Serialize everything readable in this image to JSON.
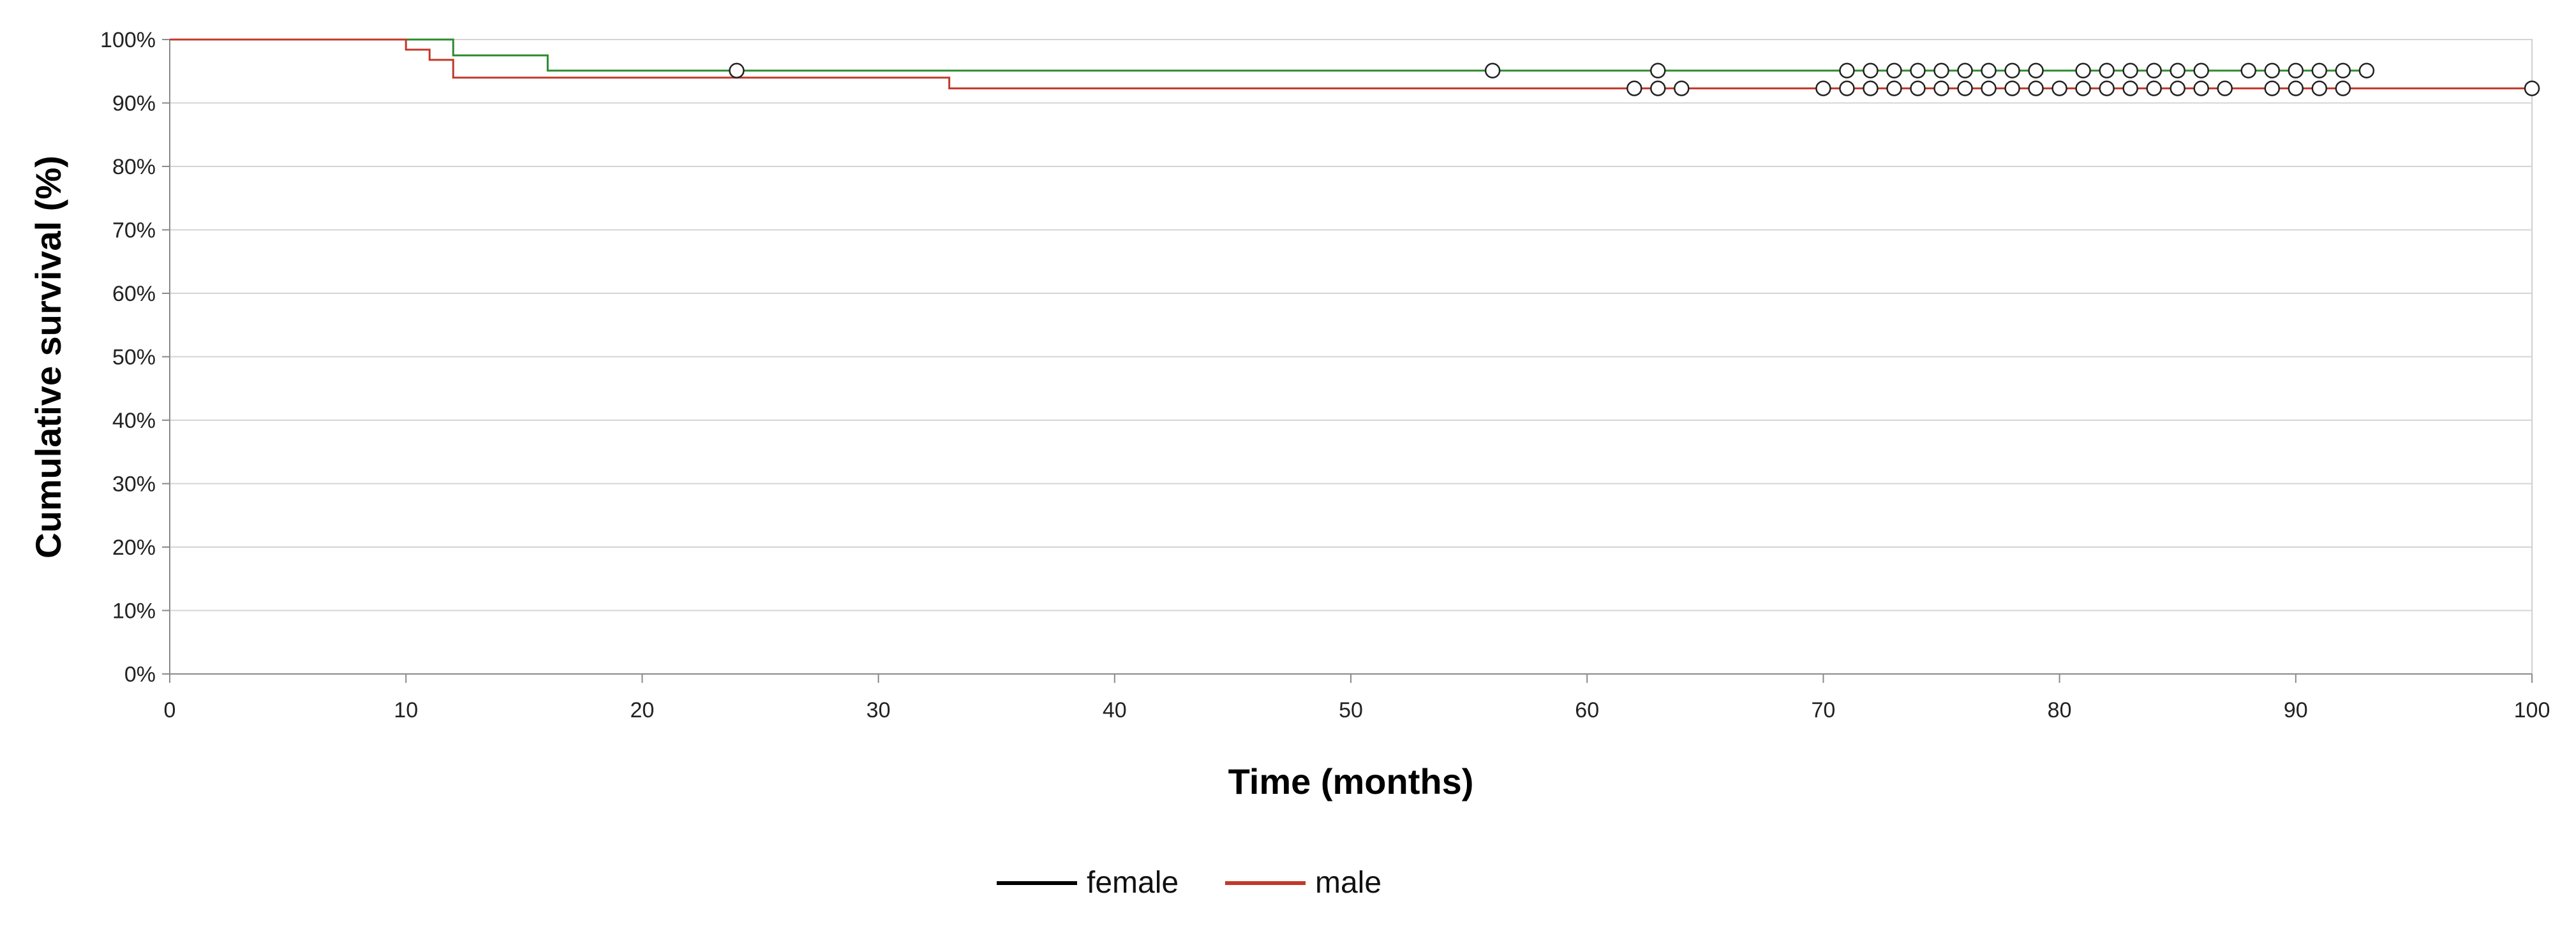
{
  "chart_data": {
    "type": "line",
    "step": true,
    "title": "",
    "xlabel": "Time (months)",
    "ylabel": "Cumulative survival (%)",
    "xlim": [
      0,
      100
    ],
    "ylim": [
      0,
      100
    ],
    "xticks": [
      0,
      10,
      20,
      30,
      40,
      50,
      60,
      70,
      80,
      90,
      100
    ],
    "xtick_labels": [
      "0",
      "10",
      "20",
      "30",
      "40",
      "50",
      "60",
      "70",
      "80",
      "90",
      "100"
    ],
    "yticks": [
      0,
      10,
      20,
      30,
      40,
      50,
      60,
      70,
      80,
      90,
      100
    ],
    "ytick_labels": [
      "0%",
      "10%",
      "20%",
      "30%",
      "40%",
      "50%",
      "60%",
      "70%",
      "80%",
      "90%",
      "100%"
    ],
    "grid": "horizontal",
    "legend_position": "bottom",
    "censor_marker": "open-circle",
    "series": [
      {
        "name": "female",
        "legend_color": "#000000",
        "color": "#2e8b2e",
        "steps": [
          [
            0,
            100
          ],
          [
            12,
            97.5
          ],
          [
            16,
            95.1
          ]
        ],
        "end_x": 93,
        "censored": [
          [
            24,
            95.1
          ],
          [
            56,
            95.1
          ],
          [
            63,
            95.1
          ],
          [
            71,
            95.1
          ],
          [
            72,
            95.1
          ],
          [
            73,
            95.1
          ],
          [
            74,
            95.1
          ],
          [
            75,
            95.1
          ],
          [
            76,
            95.1
          ],
          [
            77,
            95.1
          ],
          [
            78,
            95.1
          ],
          [
            79,
            95.1
          ],
          [
            81,
            95.1
          ],
          [
            82,
            95.1
          ],
          [
            83,
            95.1
          ],
          [
            84,
            95.1
          ],
          [
            85,
            95.1
          ],
          [
            86,
            95.1
          ],
          [
            88,
            95.1
          ],
          [
            89,
            95.1
          ],
          [
            90,
            95.1
          ],
          [
            91,
            95.1
          ],
          [
            92,
            95.1
          ],
          [
            93,
            95.1
          ]
        ]
      },
      {
        "name": "male",
        "legend_color": "#c0392b",
        "color": "#c0392b",
        "steps": [
          [
            0,
            100
          ],
          [
            10,
            98.4
          ],
          [
            11,
            96.8
          ],
          [
            12,
            94.0
          ],
          [
            33,
            92.3
          ]
        ],
        "end_x": 100,
        "censored": [
          [
            62,
            92.3
          ],
          [
            63,
            92.3
          ],
          [
            64,
            92.3
          ],
          [
            70,
            92.3
          ],
          [
            71,
            92.3
          ],
          [
            72,
            92.3
          ],
          [
            73,
            92.3
          ],
          [
            74,
            92.3
          ],
          [
            75,
            92.3
          ],
          [
            76,
            92.3
          ],
          [
            77,
            92.3
          ],
          [
            78,
            92.3
          ],
          [
            79,
            92.3
          ],
          [
            80,
            92.3
          ],
          [
            81,
            92.3
          ],
          [
            82,
            92.3
          ],
          [
            83,
            92.3
          ],
          [
            84,
            92.3
          ],
          [
            85,
            92.3
          ],
          [
            86,
            92.3
          ],
          [
            87,
            92.3
          ],
          [
            89,
            92.3
          ],
          [
            90,
            92.3
          ],
          [
            91,
            92.3
          ],
          [
            92,
            92.3
          ],
          [
            100,
            92.3
          ]
        ]
      }
    ]
  }
}
